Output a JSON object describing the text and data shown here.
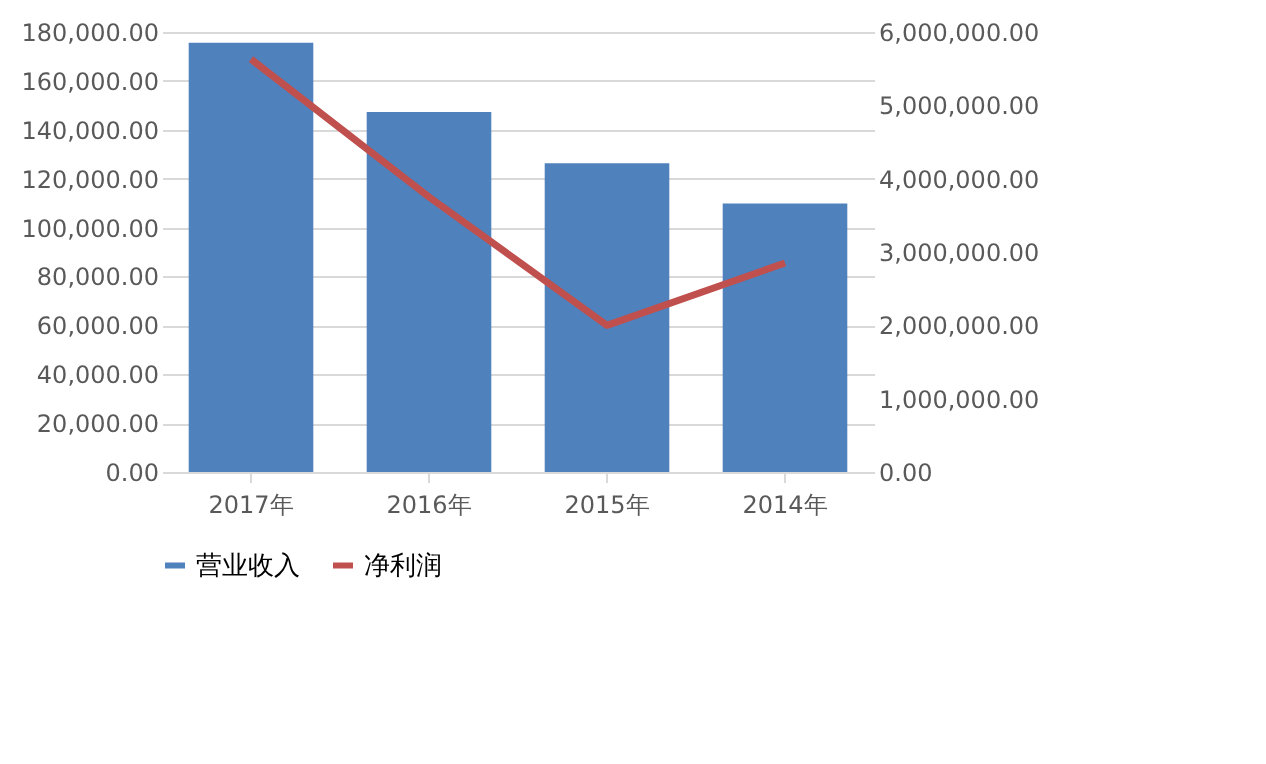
{
  "chart_data": {
    "type": "bar",
    "categories": [
      "2017年",
      "2016年",
      "2015年",
      "2014年"
    ],
    "series": [
      {
        "name": "营业收入",
        "color": "#4f81bd",
        "values": [
          175600,
          147300,
          126300,
          109800
        ]
      },
      {
        "name": "净利润",
        "color": "#c0504d",
        "type": "line",
        "axis": "y2",
        "values": [
          5630000,
          3750000,
          2000000,
          2850000
        ]
      }
    ],
    "ylim": [
      0,
      180000
    ],
    "yticks": [
      {
        "value": 0,
        "label": "0.00"
      },
      {
        "value": 20000,
        "label": "20,000.00"
      },
      {
        "value": 40000,
        "label": "40,000.00"
      },
      {
        "value": 60000,
        "label": "60,000.00"
      },
      {
        "value": 80000,
        "label": "80,000.00"
      },
      {
        "value": 100000,
        "label": "100,000.00"
      },
      {
        "value": 120000,
        "label": "120,000.00"
      },
      {
        "value": 140000,
        "label": "140,000.00"
      },
      {
        "value": 160000,
        "label": "160,000.00"
      },
      {
        "value": 180000,
        "label": "180,000.00"
      }
    ],
    "y2lim": [
      0,
      6000000
    ],
    "y2ticks": [
      {
        "value": 0,
        "label": "0.00"
      },
      {
        "value": 1000000,
        "label": "1,000,000.00"
      },
      {
        "value": 2000000,
        "label": "2,000,000.00"
      },
      {
        "value": 3000000,
        "label": "3,000,000.00"
      },
      {
        "value": 4000000,
        "label": "4,000,000.00"
      },
      {
        "value": 5000000,
        "label": "5,000,000.00"
      },
      {
        "value": 6000000,
        "label": "6,000,000.00"
      }
    ],
    "grid": "y",
    "legend": "bottom",
    "marker": "none"
  }
}
